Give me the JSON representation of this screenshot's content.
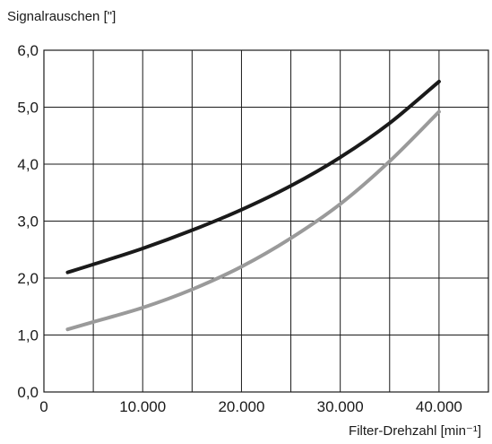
{
  "chart_data": {
    "type": "line",
    "ylabel": "Signalrauschen [\"]",
    "xlabel": "Filter-Drehzahl [min⁻¹]",
    "xlim": [
      0,
      45000
    ],
    "ylim": [
      0,
      6
    ],
    "grid": true,
    "x_ticks": [
      0,
      10000,
      20000,
      30000,
      40000
    ],
    "x_tick_labels": [
      "0",
      "10.000",
      "20.000",
      "30.000",
      "40.000"
    ],
    "y_ticks": [
      0,
      1,
      2,
      3,
      4,
      5,
      6
    ],
    "y_tick_labels": [
      "0,0",
      "1,0",
      "2,0",
      "3,0",
      "4,0",
      "5,0",
      "6,0"
    ],
    "series": [
      {
        "color": "#1a1a1a",
        "x": [
          2400,
          5000,
          10000,
          15000,
          20000,
          25000,
          30000,
          35000,
          40000
        ],
        "y": [
          2.1,
          2.24,
          2.52,
          2.84,
          3.2,
          3.62,
          4.12,
          4.72,
          5.45
        ]
      },
      {
        "color": "#9a9a9a",
        "x": [
          2400,
          5000,
          10000,
          15000,
          20000,
          25000,
          30000,
          35000,
          40000
        ],
        "y": [
          1.1,
          1.23,
          1.48,
          1.8,
          2.2,
          2.7,
          3.3,
          4.05,
          4.92
        ]
      }
    ]
  }
}
